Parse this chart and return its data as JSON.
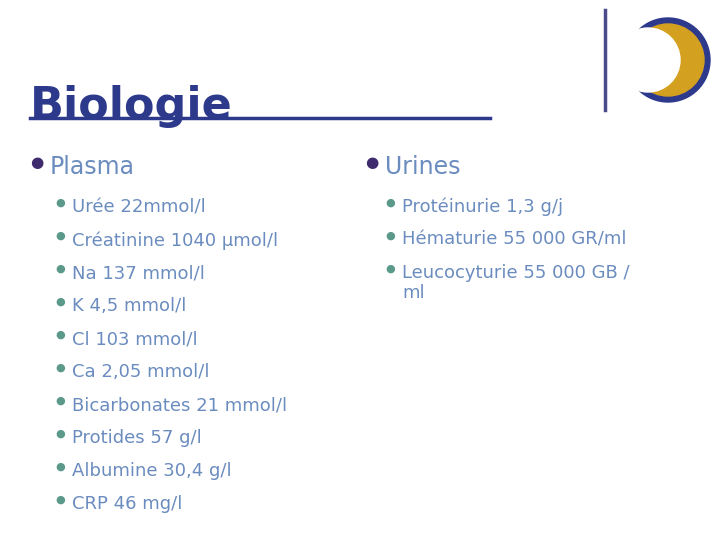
{
  "title": "Biologie",
  "title_color": "#2D3A8C",
  "title_underline_color": "#2D3A8C",
  "bg_color": "#FFFFFF",
  "left_header": "Plasma",
  "right_header": "Urines",
  "header_color": "#6B8CBF",
  "header_bullet_color": "#3D2B6E",
  "sub_bullet_color": "#5B9A8A",
  "left_items": [
    "Urée 22mmol/l",
    "Créatinine 1040 μmol/l",
    "Na 137 mmol/l",
    "K 4,5 mmol/l",
    "Cl 103 mmol/l",
    "Ca 2,05 mmol/l",
    "Bicarbonates 21 mmol/l",
    "Protides 57 g/l",
    "Albumine 30,4 g/l",
    "CRP 46 mg/l"
  ],
  "right_items": [
    "Protéinurie 1,3 g/j",
    "Hématurie 55 000 GR/ml",
    "Leucocyturie 55 000 GB /\nml"
  ],
  "item_color": "#6B8CBF",
  "crescent_outer_color": "#2D3A8C",
  "crescent_inner_color": "#D4A020",
  "line_color": "#2D3A8C",
  "vert_line_color": "#4A4A8C"
}
